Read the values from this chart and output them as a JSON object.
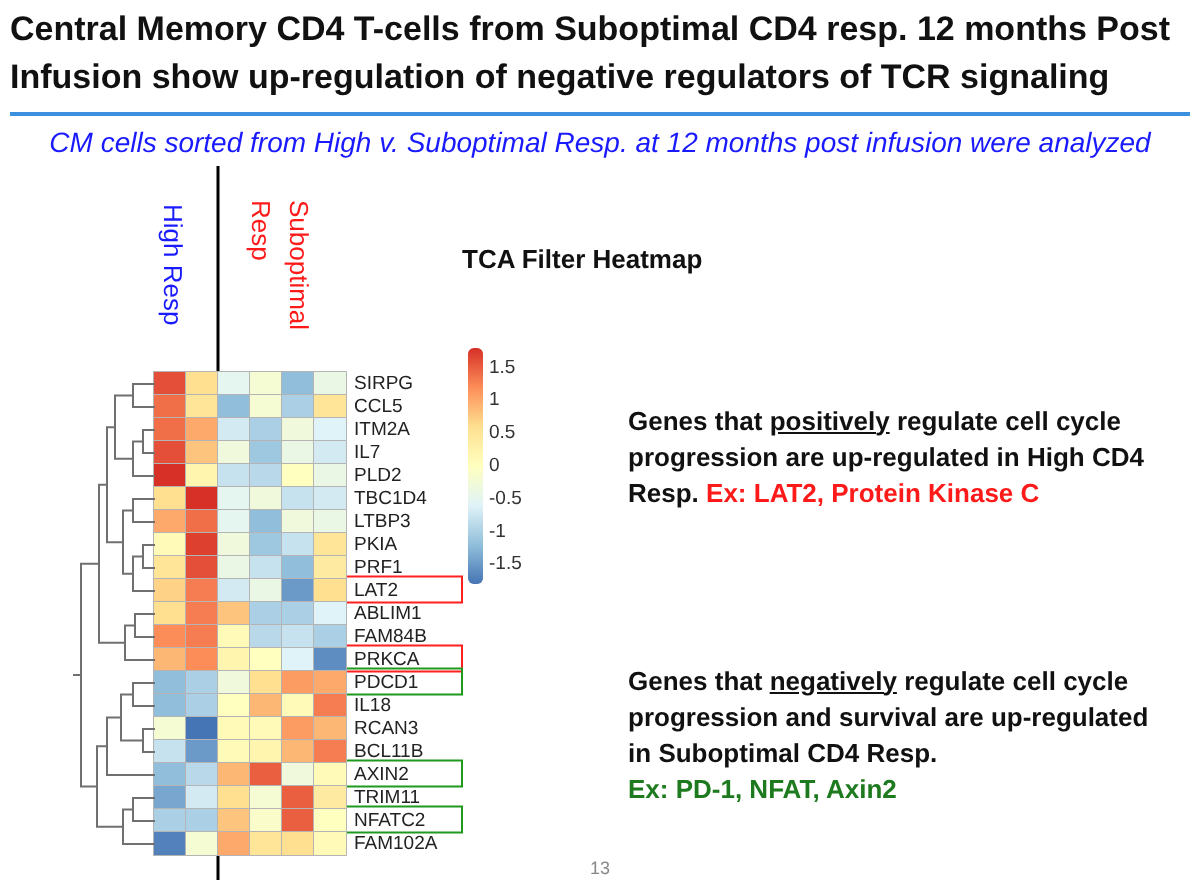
{
  "chart_data": {
    "type": "heatmap",
    "title": "Central Memory CD4 T-cells from Suboptimal CD4 resp. 12 months Post Infusion show up-regulation of negative regulators of TCR signaling",
    "subtitle": "CM cells sorted from High v. Suboptimal Resp. at 12 months post infusion were analyzed",
    "annotations": [
      "High Resp",
      "Suboptimal Resp",
      "TCA Filter Heatmap",
      "Genes that positively regulate cell cycle progression are up-regulated in High CD4 Resp.",
      "Ex: LAT2, Protein Kinase C",
      "Genes that negatively regulate cell cycle progression and survival are up-regulated in Suboptimal CD4 Resp.",
      "Ex: PD-1, NFAT, Axin2",
      "13"
    ],
    "categories": [
      null,
      null,
      null,
      null,
      null,
      null
    ],
    "y_categories": [
      "SIRPG",
      "CCL5",
      "ITM2A",
      "IL7",
      "PLD2",
      "TBC1D4",
      "LTBP3",
      "PKIA",
      "PRF1",
      "LAT2",
      "ABLIM1",
      "FAM84B",
      "PRKCA",
      "PDCD1",
      "IL18",
      "RCAN3",
      "BCL11B",
      "AXIN2",
      "TRIM11",
      "NFATC2",
      "FAM102A"
    ],
    "cells": [
      [
        1.6,
        0.6,
        -0.5,
        -0.2,
        -1.2,
        -0.4
      ],
      [
        1.4,
        0.5,
        -1.2,
        -0.2,
        -1.0,
        0.5
      ],
      [
        1.4,
        1.0,
        -0.7,
        -1.0,
        -0.3,
        -0.6
      ],
      [
        1.6,
        0.8,
        -0.3,
        -1.1,
        -0.4,
        -0.7
      ],
      [
        1.8,
        0.2,
        -0.8,
        -0.9,
        0.0,
        -0.4
      ],
      [
        0.6,
        1.8,
        -0.5,
        -0.3,
        -0.8,
        -0.7
      ],
      [
        1.0,
        1.4,
        -0.5,
        -1.2,
        -0.3,
        -0.4
      ],
      [
        0.1,
        1.7,
        -0.3,
        -1.1,
        -0.8,
        0.5
      ],
      [
        0.5,
        1.6,
        -0.4,
        -0.8,
        -1.2,
        0.4
      ],
      [
        0.7,
        1.3,
        -0.7,
        -0.4,
        -1.5,
        0.6
      ],
      [
        0.6,
        1.3,
        0.8,
        -1.0,
        -1.0,
        -0.6
      ],
      [
        1.2,
        1.3,
        0.1,
        -0.9,
        -0.8,
        -1.0
      ],
      [
        0.9,
        1.2,
        0.2,
        0.0,
        -0.6,
        -1.6
      ],
      [
        -1.2,
        -1.0,
        -0.3,
        0.6,
        1.1,
        1.0
      ],
      [
        -1.2,
        -1.0,
        0.0,
        0.9,
        0.1,
        1.3
      ],
      [
        -0.2,
        -1.8,
        0.1,
        0.1,
        1.1,
        0.9
      ],
      [
        -0.8,
        -1.5,
        0.1,
        0.2,
        0.9,
        1.3
      ],
      [
        -1.2,
        -0.9,
        0.9,
        1.5,
        -0.3,
        0.1
      ],
      [
        -1.4,
        -0.7,
        0.6,
        -0.2,
        1.5,
        0.4
      ],
      [
        -1.0,
        -1.0,
        0.8,
        -0.1,
        1.5,
        0.0
      ],
      [
        -1.7,
        -0.2,
        1.0,
        0.5,
        0.6,
        0.1
      ]
    ],
    "clim": [
      -1.8,
      1.8
    ],
    "cticks": [
      -1.5,
      -1,
      -0.5,
      0,
      0.5,
      1,
      1.5
    ]
  }
}
